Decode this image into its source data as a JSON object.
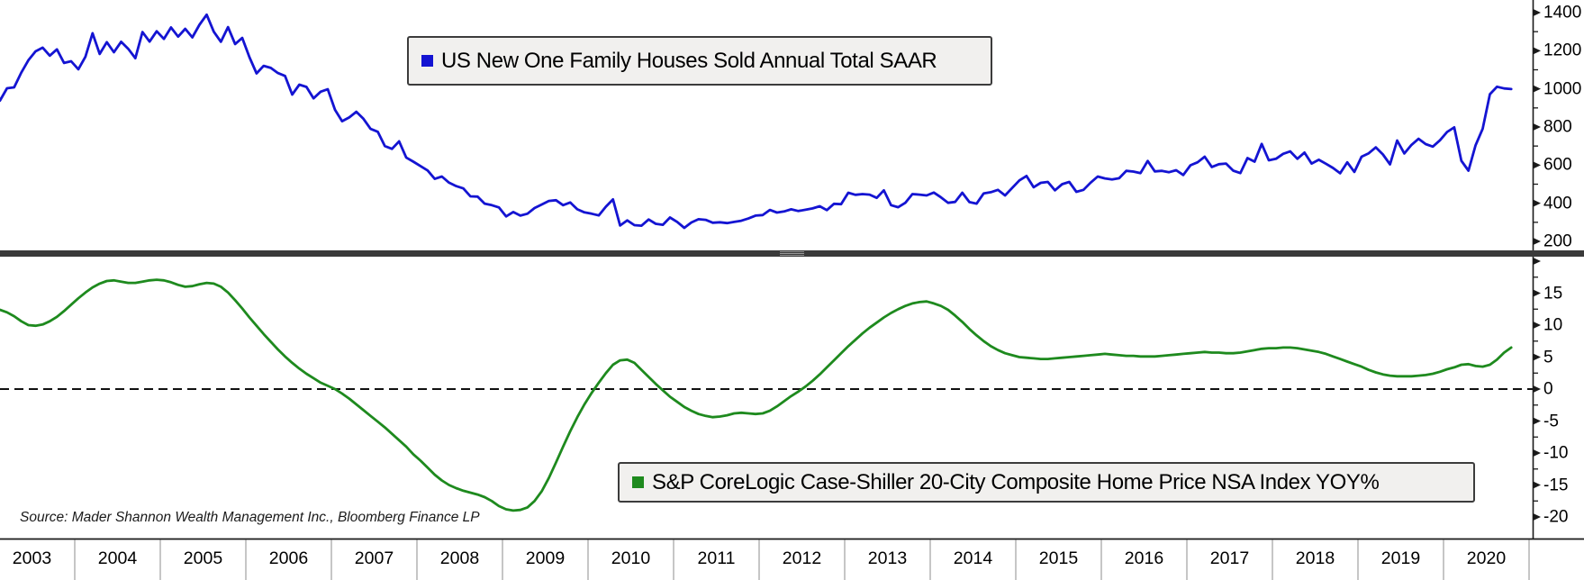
{
  "source_note": "Source: Mader Shannon Wealth Management Inc., Bloomberg Finance LP",
  "colors": {
    "houses_sold_line": "#1414d2",
    "case_shiller_line": "#1e8a1e",
    "legend_bg": "#f1f0ee",
    "legend_border": "#3c3c3c",
    "panel_divider": "#3a3a3a",
    "divider_gripper": "#9a9a9a",
    "axis": "#1a1a1a",
    "year_divider": "#a0a0a0",
    "zero_line": "#111111"
  },
  "legends": {
    "top": {
      "label": "US New One Family Houses Sold Annual Total SAAR",
      "marker_color": "#1414d2"
    },
    "bottom": {
      "label": "S&P CoreLogic Case-Shiller 20-City Composite Home Price NSA Index YOY%",
      "marker_color": "#1e8a1e"
    }
  },
  "x_axis": {
    "year_labels": [
      "2003",
      "2004",
      "2005",
      "2006",
      "2007",
      "2008",
      "2009",
      "2010",
      "2011",
      "2012",
      "2013",
      "2014",
      "2015",
      "2016",
      "2017",
      "2018",
      "2019",
      "2020"
    ]
  },
  "chart_data": [
    {
      "type": "line",
      "panel": "top",
      "title": "US New One Family Houses Sold Annual Total SAAR",
      "legend_position": "top-center-left",
      "color": "#1414d2",
      "axis_side": "right",
      "ylim": [
        150,
        1430
      ],
      "yticks": [
        1400,
        1200,
        1000,
        800,
        600,
        400,
        200
      ],
      "yticks_unlabeled": [],
      "grid": false,
      "x_start": "2003-01",
      "x_end": "2020-10",
      "x_freq": "monthly",
      "units": "thousands, SAAR",
      "values": [
        1040,
        938,
        1003,
        1008,
        1085,
        1150,
        1197,
        1216,
        1174,
        1207,
        1136,
        1145,
        1103,
        1169,
        1292,
        1183,
        1245,
        1192,
        1247,
        1210,
        1161,
        1298,
        1248,
        1302,
        1262,
        1322,
        1274,
        1315,
        1270,
        1336,
        1389,
        1300,
        1247,
        1324,
        1235,
        1267,
        1166,
        1081,
        1121,
        1110,
        1083,
        1068,
        970,
        1022,
        1010,
        950,
        985,
        998,
        890,
        830,
        850,
        880,
        843,
        790,
        775,
        700,
        685,
        725,
        640,
        618,
        595,
        572,
        528,
        540,
        508,
        490,
        478,
        436,
        435,
        398,
        390,
        378,
        331,
        354,
        335,
        345,
        375,
        393,
        412,
        416,
        390,
        404,
        368,
        352,
        345,
        336,
        382,
        420,
        283,
        310,
        285,
        282,
        315,
        292,
        287,
        325,
        302,
        271,
        299,
        316,
        313,
        298,
        300,
        296,
        302,
        308,
        320,
        335,
        338,
        365,
        351,
        357,
        368,
        359,
        366,
        373,
        384,
        364,
        397,
        395,
        455,
        444,
        448,
        445,
        428,
        468,
        390,
        379,
        402,
        448,
        445,
        441,
        456,
        431,
        402,
        407,
        455,
        406,
        398,
        452,
        458,
        470,
        441,
        480,
        520,
        543,
        484,
        507,
        512,
        468,
        500,
        512,
        460,
        470,
        508,
        540,
        530,
        525,
        531,
        570,
        566,
        558,
        622,
        567,
        570,
        563,
        573,
        548,
        599,
        615,
        644,
        590,
        605,
        608,
        571,
        558,
        637,
        618,
        711,
        625,
        633,
        659,
        672,
        633,
        666,
        608,
        628,
        607,
        585,
        557,
        615,
        564,
        644,
        662,
        693,
        656,
        604,
        729,
        661,
        706,
        738,
        710,
        697,
        730,
        774,
        798,
        623,
        571,
        704,
        791,
        972,
        1011,
        1002,
        999
      ]
    },
    {
      "type": "line",
      "panel": "bottom",
      "title": "S&P CoreLogic Case-Shiller 20-City Composite Home Price NSA Index YOY%",
      "legend_position": "bottom-center-right",
      "color": "#1e8a1e",
      "axis_side": "right",
      "ylim": [
        -21.5,
        20.5
      ],
      "yticks": [
        15,
        10,
        5,
        0,
        -5,
        -10,
        -15,
        -20
      ],
      "yticks_unlabeled": [
        20
      ],
      "zero_line_dashed": true,
      "grid": false,
      "x_start": "2003-01",
      "x_end": "2020-10",
      "x_freq": "monthly",
      "units": "percent YOY",
      "values": [
        12.3,
        12.4,
        12.0,
        11.4,
        10.6,
        10.0,
        9.9,
        10.1,
        10.6,
        11.3,
        12.2,
        13.2,
        14.2,
        15.1,
        15.9,
        16.5,
        16.9,
        17.0,
        16.8,
        16.6,
        16.6,
        16.8,
        17.0,
        17.1,
        17.0,
        16.7,
        16.3,
        16.0,
        16.1,
        16.4,
        16.6,
        16.5,
        16.0,
        15.1,
        13.9,
        12.6,
        11.2,
        9.9,
        8.6,
        7.4,
        6.2,
        5.1,
        4.1,
        3.2,
        2.4,
        1.7,
        1.0,
        0.5,
        0.0,
        -0.7,
        -1.5,
        -2.4,
        -3.3,
        -4.2,
        -5.1,
        -6.0,
        -7.0,
        -8.0,
        -9.0,
        -10.2,
        -11.2,
        -12.3,
        -13.4,
        -14.3,
        -15.0,
        -15.5,
        -15.9,
        -16.2,
        -16.5,
        -16.9,
        -17.5,
        -18.3,
        -18.8,
        -19.0,
        -18.9,
        -18.5,
        -17.5,
        -16.0,
        -13.9,
        -11.5,
        -9.0,
        -6.6,
        -4.4,
        -2.4,
        -0.6,
        1.0,
        2.5,
        3.8,
        4.5,
        4.6,
        4.1,
        3.0,
        1.9,
        0.8,
        -0.2,
        -1.2,
        -2.0,
        -2.8,
        -3.4,
        -3.9,
        -4.2,
        -4.4,
        -4.3,
        -4.1,
        -3.8,
        -3.7,
        -3.8,
        -3.9,
        -3.8,
        -3.4,
        -2.7,
        -1.9,
        -1.1,
        -0.4,
        0.4,
        1.3,
        2.3,
        3.4,
        4.5,
        5.6,
        6.7,
        7.7,
        8.7,
        9.6,
        10.4,
        11.2,
        11.9,
        12.5,
        13.0,
        13.4,
        13.6,
        13.7,
        13.4,
        13.0,
        12.4,
        11.5,
        10.5,
        9.4,
        8.4,
        7.5,
        6.7,
        6.1,
        5.6,
        5.3,
        5.0,
        4.9,
        4.8,
        4.7,
        4.7,
        4.8,
        4.9,
        5.0,
        5.1,
        5.2,
        5.3,
        5.4,
        5.5,
        5.4,
        5.3,
        5.2,
        5.2,
        5.1,
        5.1,
        5.1,
        5.2,
        5.3,
        5.4,
        5.5,
        5.6,
        5.7,
        5.8,
        5.7,
        5.7,
        5.6,
        5.6,
        5.7,
        5.9,
        6.1,
        6.3,
        6.4,
        6.4,
        6.5,
        6.5,
        6.4,
        6.2,
        6.0,
        5.8,
        5.5,
        5.1,
        4.7,
        4.3,
        3.9,
        3.5,
        3.0,
        2.6,
        2.3,
        2.1,
        2.0,
        2.0,
        2.0,
        2.1,
        2.2,
        2.4,
        2.7,
        3.1,
        3.4,
        3.8,
        3.9,
        3.6,
        3.5,
        3.8,
        4.6,
        5.7,
        6.5
      ]
    }
  ]
}
